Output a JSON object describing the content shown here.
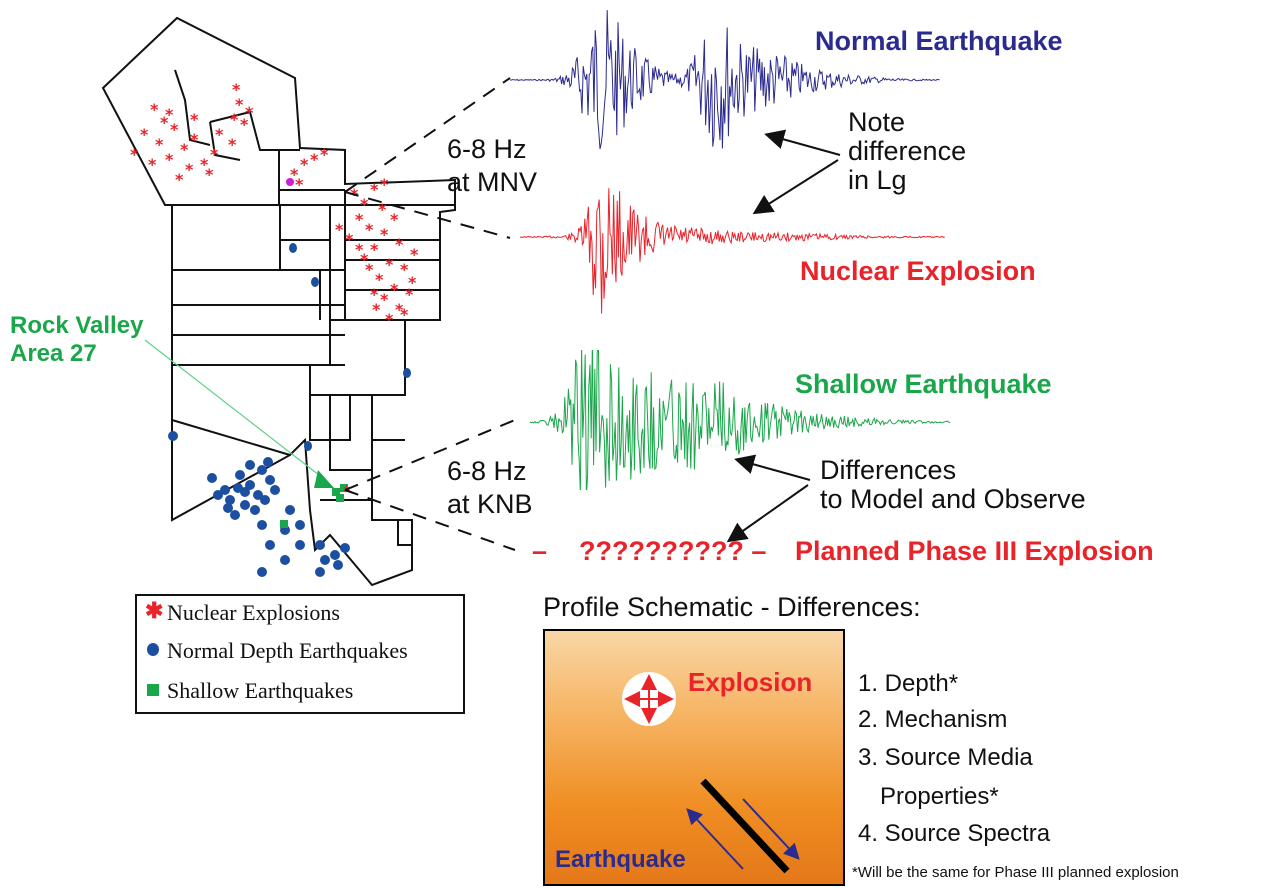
{
  "colors": {
    "normal_earthquake": "#2b2b8f",
    "nuclear_explosion": "#e8232a",
    "shallow_earthquake": "#1aa64a",
    "normal_depth_dot": "#1c4fa0",
    "fault": "#000000"
  },
  "map": {
    "site_label_line1": "Rock Valley",
    "site_label_line2": "Area 27"
  },
  "filters": {
    "top_line1": "6-8 Hz",
    "top_line2": "at MNV",
    "bottom_line1": "6-8 Hz",
    "bottom_line2": "at KNB"
  },
  "waveforms": {
    "normal_earthquake": "Normal Earthquake",
    "nuclear_explosion": "Nuclear Explosion",
    "shallow_earthquake": "Shallow Earthquake",
    "planned_dash_left": "–",
    "planned_question": "?????????? –",
    "planned_explosion": "Planned Phase III Explosion"
  },
  "annotations": {
    "note_line1": "Note",
    "note_line2": "difference",
    "note_line3": "in Lg",
    "diff_line1": "Differences",
    "diff_line2": "to Model and Observe"
  },
  "legend": {
    "nuclear_explosions": "Nuclear Explosions",
    "normal_depth_earthquakes": "Normal Depth Earthquakes",
    "shallow_earthquakes": "Shallow Earthquakes"
  },
  "profile": {
    "title": "Profile Schematic - Differences:",
    "explosion_label": "Explosion",
    "earthquake_label": "Earthquake",
    "items": [
      "1. Depth*",
      "2. Mechanism",
      "3. Source Media",
      "Properties*",
      "4. Source Spectra"
    ],
    "footnote": "*Will be the same for Phase III planned explosion"
  }
}
